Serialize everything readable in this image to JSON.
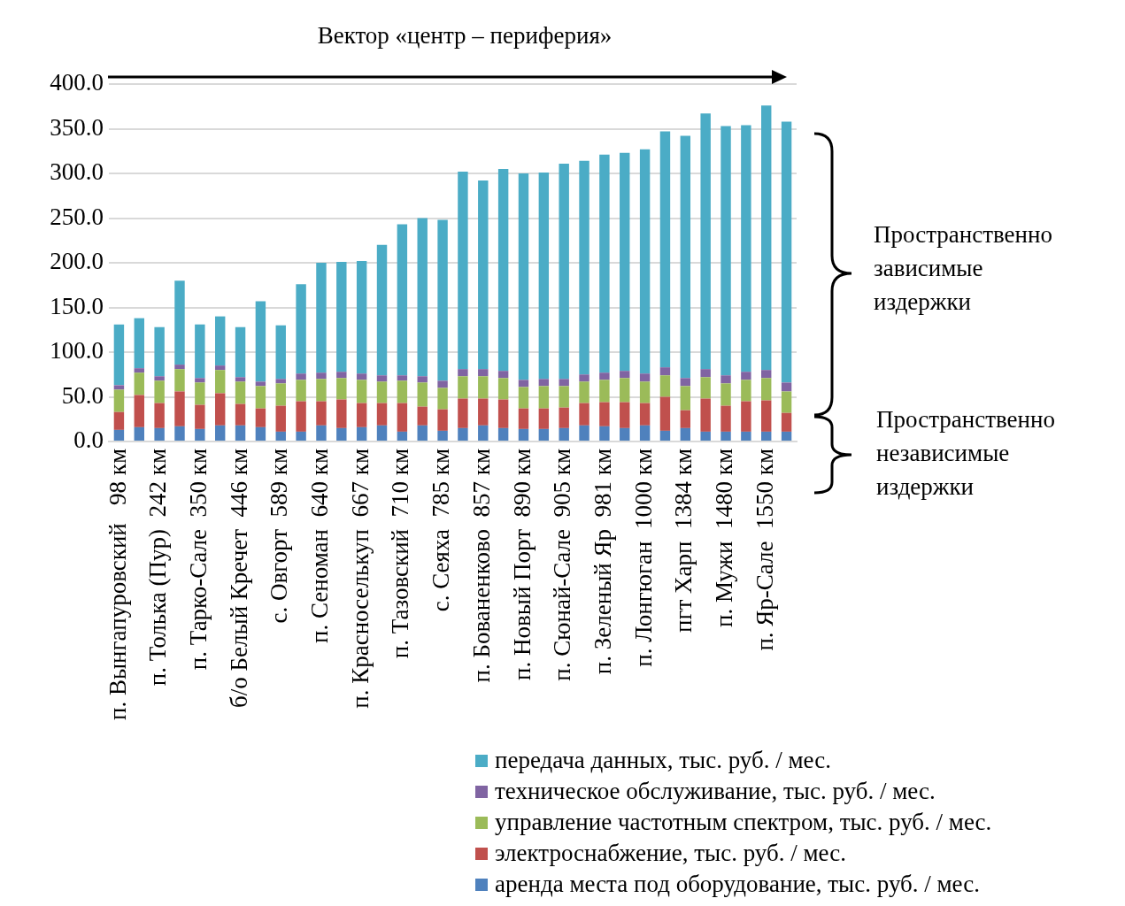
{
  "chart_data": {
    "type": "bar",
    "stacked": true,
    "title": "Вектор «центр – периферия»",
    "categories": [
      "п. Вынгапуровский   98 км",
      null,
      "п. Толька (Пур)  242 км",
      null,
      "п. Тарко-Сале  350 км",
      null,
      "б/о Белый Кречет  446 км",
      null,
      "с. Овгорт  589 км",
      null,
      "п. Сеноман  640 км",
      null,
      "п. Красноселькуп  667 км",
      null,
      "п. Тазовский  710 км",
      null,
      "с. Сеяха  785 км",
      null,
      "п. Бованенково  857 км",
      null,
      "п. Новый Порт  890 км",
      null,
      "п. Сюнай-Сале  905 км",
      null,
      "п. Зеленый Яр  981 км",
      null,
      "п. Лонгюган  1000 км",
      null,
      "пгт Харп  1384 км",
      null,
      "п. Мужи  1480 км",
      null,
      "п. Яр-Сале  1550 км",
      null
    ],
    "series": [
      {
        "name": "аренда места под оборудование, тыс. руб. / мес.",
        "color": "#4f81bd",
        "values": [
          13,
          16,
          15,
          17,
          14,
          18,
          18,
          16,
          11,
          11,
          18,
          15,
          16,
          18,
          11,
          18,
          12,
          15,
          18,
          15,
          14,
          14,
          15,
          18,
          17,
          15,
          18,
          12,
          15,
          11,
          11,
          11,
          11,
          11
        ]
      },
      {
        "name": "электроснабжение, тыс. руб. / мес.",
        "color": "#c0504d",
        "values": [
          20,
          36,
          28,
          39,
          27,
          36,
          24,
          21,
          29,
          34,
          27,
          32,
          27,
          25,
          32,
          21,
          24,
          33,
          30,
          32,
          23,
          23,
          23,
          25,
          27,
          29,
          25,
          38,
          20,
          37,
          29,
          34,
          35,
          21
        ]
      },
      {
        "name": "управление частотным спектром, тыс. руб. / мес.",
        "color": "#9bbb59",
        "values": [
          25,
          25,
          25,
          25,
          25,
          26,
          25,
          25,
          25,
          24,
          25,
          24,
          26,
          24,
          25,
          27,
          24,
          25,
          25,
          24,
          24,
          25,
          24,
          24,
          25,
          27,
          24,
          24,
          27,
          24,
          25,
          24,
          25,
          24
        ]
      },
      {
        "name": "техническое обслуживание, тыс. руб. / мес.",
        "color": "#8064a2",
        "values": [
          5,
          5,
          5,
          5,
          5,
          5,
          5,
          5,
          5,
          7,
          7,
          7,
          7,
          7,
          6,
          7,
          8,
          8,
          8,
          8,
          8,
          8,
          8,
          8,
          8,
          8,
          9,
          9,
          9,
          9,
          9,
          9,
          9,
          10
        ]
      },
      {
        "name": "передача данных, тыс. руб. / мес.",
        "color": "#4bacc6",
        "values": [
          68,
          56,
          55,
          94,
          60,
          55,
          56,
          90,
          60,
          100,
          123,
          123,
          126,
          146,
          169,
          177,
          180,
          221,
          211,
          226,
          231,
          231,
          241,
          239,
          244,
          244,
          251,
          264,
          271,
          286,
          279,
          276,
          296,
          292
        ]
      }
    ],
    "ylim": [
      0,
      400
    ],
    "yticks": [
      {
        "value": 0,
        "label": "0.0"
      },
      {
        "value": 50,
        "label": "50.0"
      },
      {
        "value": 100,
        "label": "100.0"
      },
      {
        "value": 150,
        "label": "150.0"
      },
      {
        "value": 200,
        "label": "200.0"
      },
      {
        "value": 250,
        "label": "250.0"
      },
      {
        "value": 300,
        "label": "300.0"
      },
      {
        "value": 350,
        "label": "350.0"
      },
      {
        "value": 400,
        "label": "400.0"
      }
    ],
    "grid": "y",
    "legend": "bottom",
    "annotations": [
      "Пространственно зависимые издержки",
      "Пространственно независимые издержки"
    ]
  }
}
